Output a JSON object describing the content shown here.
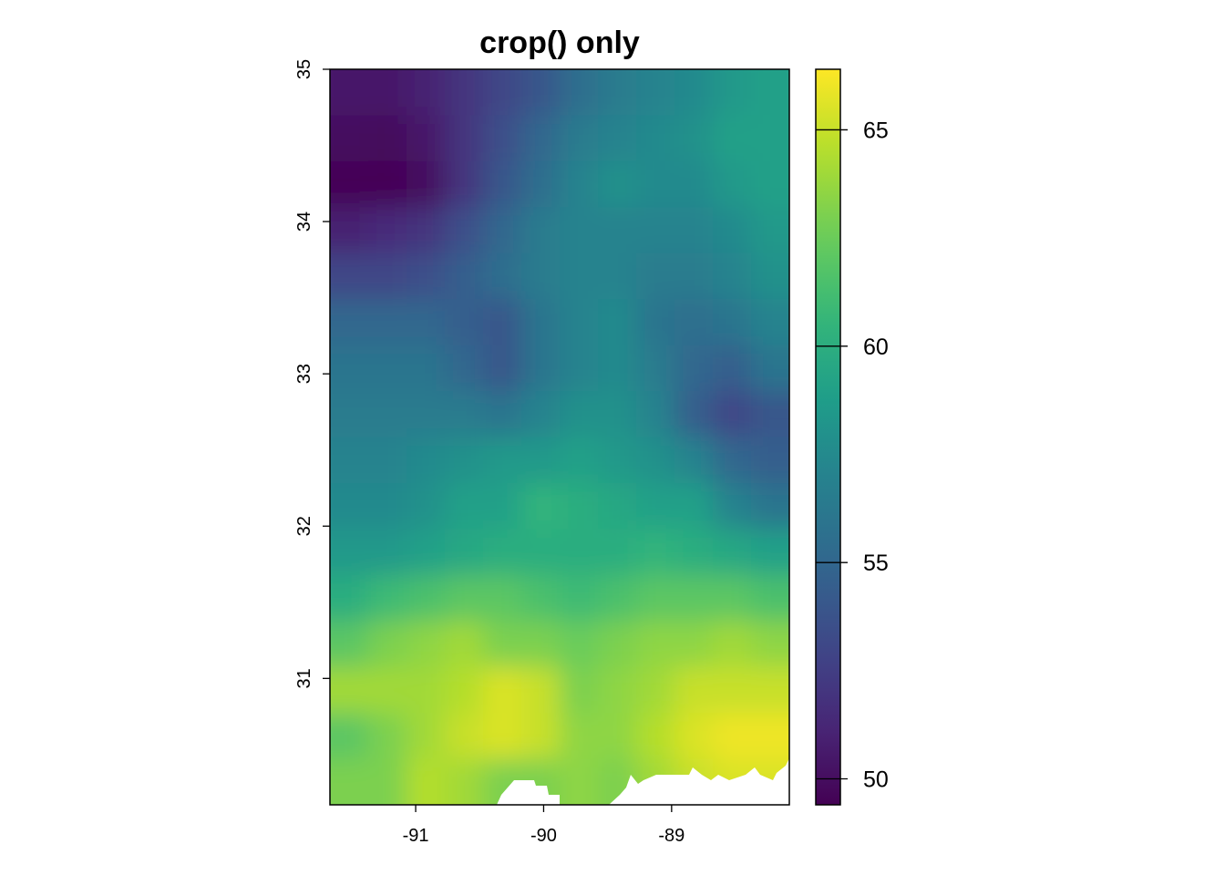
{
  "chart_data": {
    "type": "heatmap",
    "title": "crop() only",
    "xlabel": "",
    "ylabel": "",
    "xlim": [
      -91.67,
      -88.08
    ],
    "ylim": [
      30.17,
      35
    ],
    "x_ticks": [
      -91,
      -90,
      -89
    ],
    "y_ticks": [
      31,
      32,
      33,
      34,
      35
    ],
    "x_tick_labels": [
      "-91",
      "-90",
      "-89"
    ],
    "y_tick_labels": [
      "31",
      "32",
      "33",
      "34",
      "35"
    ],
    "colorscale": "viridis",
    "color_range": [
      49.4,
      66.4
    ],
    "colorbar_ticks": [
      50,
      55,
      60,
      65
    ],
    "colorbar_tick_labels": [
      "50",
      "55",
      "60",
      "65"
    ],
    "grid": false,
    "legend": "right",
    "na_color": "#ffffff",
    "rows_top_to_bottom": [
      [
        50.5,
        50.5,
        51,
        52,
        53,
        54,
        55.5,
        56.5,
        57,
        57.5,
        58.5,
        59
      ],
      [
        50,
        49.8,
        50.5,
        52,
        53.5,
        55,
        56.5,
        57,
        57.5,
        58,
        59,
        59
      ],
      [
        49.5,
        49.5,
        50,
        52,
        54,
        55.5,
        57,
        58,
        57.5,
        57.5,
        58.5,
        59
      ],
      [
        51,
        51.5,
        52,
        53.5,
        55,
        56.5,
        57,
        57,
        57,
        57,
        57.5,
        58.5
      ],
      [
        53,
        53,
        53.5,
        54.5,
        55.5,
        56.5,
        57,
        57,
        56.5,
        56.5,
        57,
        58
      ],
      [
        55,
        55,
        55,
        54.5,
        54,
        56,
        57,
        57.5,
        56,
        55.5,
        56,
        57
      ],
      [
        56,
        56,
        56,
        55,
        54,
        56,
        57,
        57.5,
        56.5,
        55,
        54.5,
        56
      ],
      [
        56.5,
        56.5,
        56.5,
        56.5,
        56,
        57,
        58,
        58,
        57,
        54.5,
        53,
        54
      ],
      [
        57,
        57,
        57.5,
        58,
        58.5,
        58.5,
        59,
        58.5,
        58,
        57,
        55,
        54.5
      ],
      [
        57.5,
        57.5,
        58,
        59,
        59,
        60.5,
        60,
        59.5,
        59,
        59,
        57,
        56
      ],
      [
        58.5,
        58.5,
        59,
        59.5,
        60,
        60,
        60,
        60,
        60.5,
        60,
        59.5,
        59
      ],
      [
        60,
        61,
        61.5,
        62,
        62,
        61.5,
        61,
        61.5,
        62,
        62,
        62,
        61.5
      ],
      [
        62,
        63,
        63.5,
        64,
        63,
        63,
        62.5,
        63,
        63.5,
        63.5,
        64,
        63.5
      ],
      [
        64,
        64,
        64,
        64.5,
        65.5,
        65,
        63,
        63.5,
        64,
        65,
        65,
        65
      ],
      [
        62,
        63,
        64,
        65,
        65.5,
        65,
        63.5,
        63.5,
        64.5,
        65.5,
        66,
        66
      ],
      [
        63,
        63,
        64.5,
        64,
        63,
        63,
        63.5,
        63,
        64,
        65,
        65.5,
        65.5
      ]
    ]
  }
}
